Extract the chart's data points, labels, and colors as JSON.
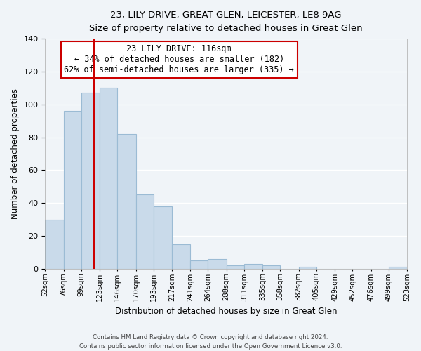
{
  "title": "23, LILY DRIVE, GREAT GLEN, LEICESTER, LE8 9AG",
  "subtitle": "Size of property relative to detached houses in Great Glen",
  "xlabel": "Distribution of detached houses by size in Great Glen",
  "ylabel": "Number of detached properties",
  "bar_color": "#c9daea",
  "bar_edge_color": "#9bbbd4",
  "vline_color": "#cc0000",
  "vline_x": 116,
  "bin_edges": [
    52,
    76,
    99,
    123,
    146,
    170,
    193,
    217,
    241,
    264,
    288,
    311,
    335,
    358,
    382,
    405,
    429,
    452,
    476,
    499,
    523
  ],
  "bar_heights": [
    30,
    96,
    107,
    110,
    82,
    45,
    38,
    15,
    5,
    6,
    2,
    3,
    2,
    0,
    1,
    0,
    0,
    0,
    0,
    1
  ],
  "tick_labels": [
    "52sqm",
    "76sqm",
    "99sqm",
    "123sqm",
    "146sqm",
    "170sqm",
    "193sqm",
    "217sqm",
    "241sqm",
    "264sqm",
    "288sqm",
    "311sqm",
    "335sqm",
    "358sqm",
    "382sqm",
    "405sqm",
    "429sqm",
    "452sqm",
    "476sqm",
    "499sqm",
    "523sqm"
  ],
  "ylim": [
    0,
    140
  ],
  "yticks": [
    0,
    20,
    40,
    60,
    80,
    100,
    120,
    140
  ],
  "ann_line1": "23 LILY DRIVE: 116sqm",
  "ann_line2": "← 34% of detached houses are smaller (182)",
  "ann_line3": "62% of semi-detached houses are larger (335) →",
  "footer_line1": "Contains HM Land Registry data © Crown copyright and database right 2024.",
  "footer_line2": "Contains public sector information licensed under the Open Government Licence v3.0.",
  "background_color": "#f0f4f8",
  "grid_color": "#ffffff",
  "fig_width": 6.0,
  "fig_height": 5.0,
  "dpi": 100
}
